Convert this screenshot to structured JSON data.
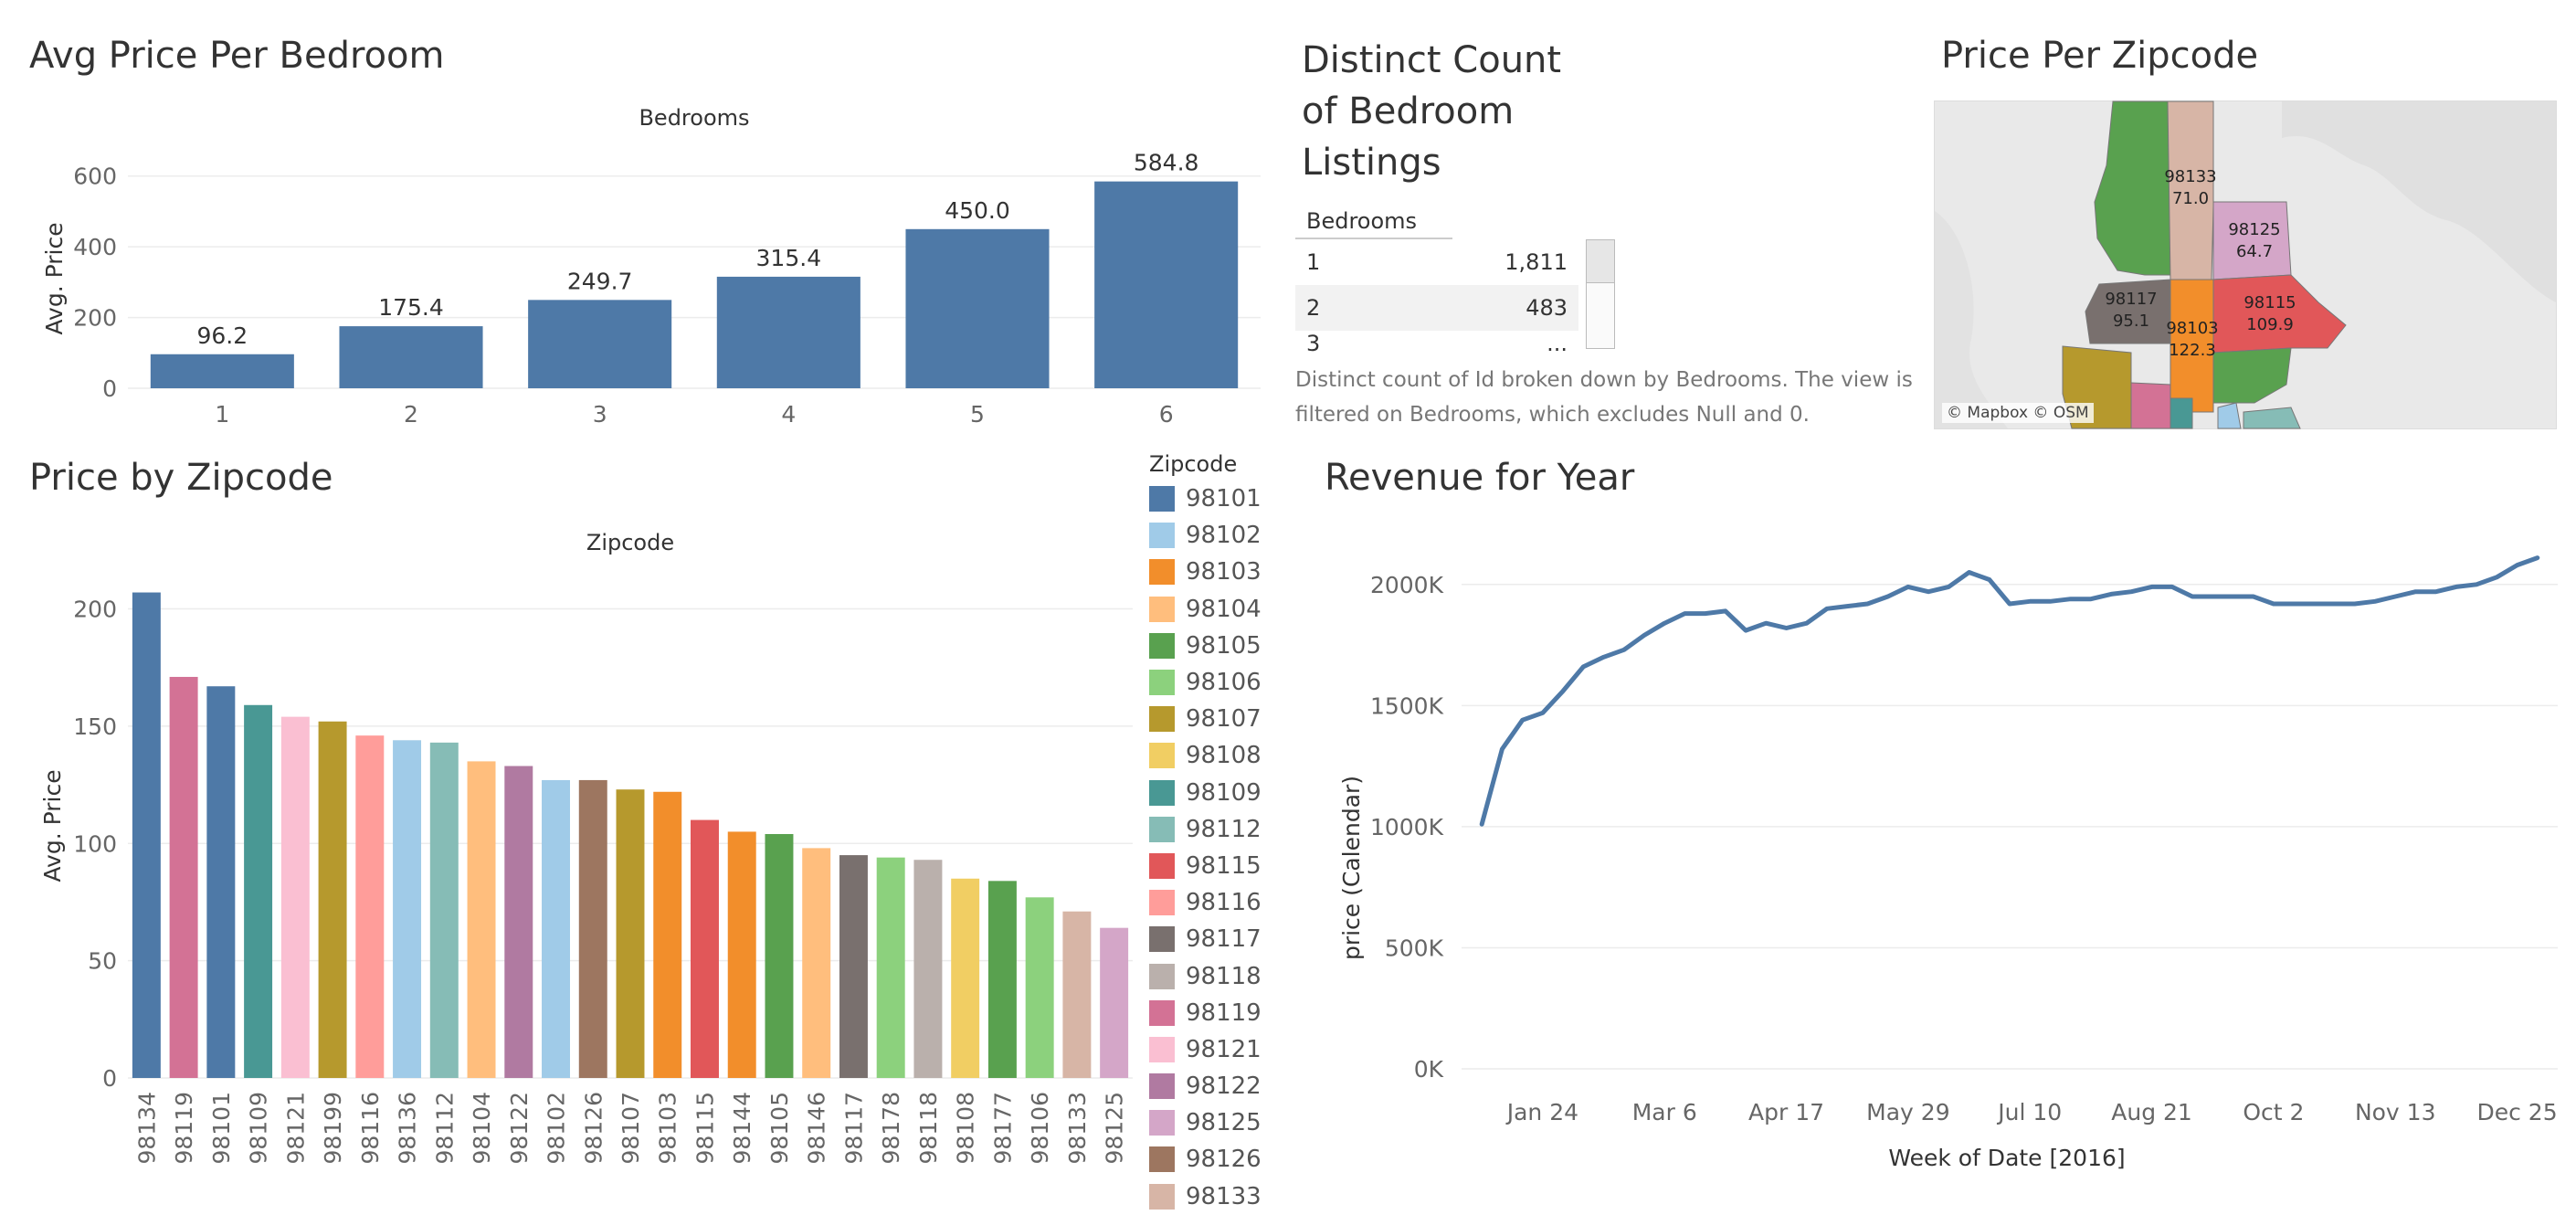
{
  "panels": {
    "bedroom_title": "Avg Price Per Bedroom",
    "zipcode_title": "Price by Zipcode",
    "distinct_title_lines": [
      "Distinct Count",
      "of Bedroom",
      "Listings"
    ],
    "map_title": "Price Per Zipcode",
    "revenue_title": "Revenue for Year"
  },
  "distinct_table": {
    "header": "Bedrooms",
    "rows": [
      {
        "label": "1",
        "value": "1,811"
      },
      {
        "label": "2",
        "value": "483"
      },
      {
        "label": "3",
        "value": "..."
      }
    ],
    "caption_lines": [
      "Distinct count of Id broken down by Bedrooms. The view is",
      "filtered on Bedrooms, which excludes Null and 0."
    ]
  },
  "map": {
    "attribution": "© Mapbox © OSM",
    "regions": [
      {
        "zip": "98133",
        "value": "71.0",
        "color": "#d7b5a6"
      },
      {
        "zip": "98125",
        "value": "64.7",
        "color": "#d4a6c8"
      },
      {
        "zip": "98117",
        "value": "95.1",
        "color": "#79706e"
      },
      {
        "zip": "98103",
        "value": "122.3",
        "color": "#f28e2b"
      },
      {
        "zip": "98115",
        "value": "109.9",
        "color": "#e15759"
      }
    ]
  },
  "legend": {
    "title": "Zipcode",
    "items": [
      {
        "label": "98101",
        "color": "#4e79a7"
      },
      {
        "label": "98102",
        "color": "#a0cbe8"
      },
      {
        "label": "98103",
        "color": "#f28e2b"
      },
      {
        "label": "98104",
        "color": "#ffbe7d"
      },
      {
        "label": "98105",
        "color": "#59a14f"
      },
      {
        "label": "98106",
        "color": "#8cd17d"
      },
      {
        "label": "98107",
        "color": "#b6992d"
      },
      {
        "label": "98108",
        "color": "#f1ce63"
      },
      {
        "label": "98109",
        "color": "#499894"
      },
      {
        "label": "98112",
        "color": "#86bcb6"
      },
      {
        "label": "98115",
        "color": "#e15759"
      },
      {
        "label": "98116",
        "color": "#ff9d9a"
      },
      {
        "label": "98117",
        "color": "#79706e"
      },
      {
        "label": "98118",
        "color": "#bab0ac"
      },
      {
        "label": "98119",
        "color": "#d37295"
      },
      {
        "label": "98121",
        "color": "#fabfd2"
      },
      {
        "label": "98122",
        "color": "#b07aa1"
      },
      {
        "label": "98125",
        "color": "#d4a6c8"
      },
      {
        "label": "98126",
        "color": "#9d7660"
      },
      {
        "label": "98133",
        "color": "#d7b5a6"
      }
    ]
  },
  "chart_data": [
    {
      "type": "bar",
      "title": "Avg Price Per Bedroom",
      "header": "Bedrooms",
      "categories": [
        "1",
        "2",
        "3",
        "4",
        "5",
        "6"
      ],
      "values": [
        96.2,
        175.4,
        249.7,
        315.4,
        450.0,
        584.8
      ],
      "data_labels": [
        "96.2",
        "175.4",
        "249.7",
        "315.4",
        "450.0",
        "584.8"
      ],
      "ylabel": "Avg. Price",
      "yticks": [
        0,
        200,
        400,
        600
      ],
      "ylim": [
        0,
        620
      ],
      "color": "#4e79a7"
    },
    {
      "type": "bar",
      "title": "Price by Zipcode",
      "header": "Zipcode",
      "categories": [
        "98134",
        "98119",
        "98101",
        "98109",
        "98121",
        "98199",
        "98116",
        "98136",
        "98112",
        "98104",
        "98122",
        "98102",
        "98126",
        "98107",
        "98103",
        "98115",
        "98144",
        "98105",
        "98146",
        "98117",
        "98178",
        "98118",
        "98108",
        "98177",
        "98106",
        "98133",
        "98125"
      ],
      "values": [
        207,
        171,
        167,
        159,
        154,
        152,
        146,
        144,
        143,
        135,
        133,
        127,
        127,
        123,
        122,
        110,
        105,
        104,
        98,
        95,
        94,
        93,
        85,
        84,
        77,
        71,
        64
      ],
      "colors": [
        "#4e79a7",
        "#d37295",
        "#4e79a7",
        "#499894",
        "#fabfd2",
        "#b6992d",
        "#ff9d9a",
        "#a0cbe8",
        "#86bcb6",
        "#ffbe7d",
        "#b07aa1",
        "#a0cbe8",
        "#9d7660",
        "#b6992d",
        "#f28e2b",
        "#e15759",
        "#f28e2b",
        "#59a14f",
        "#ffbe7d",
        "#79706e",
        "#8cd17d",
        "#bab0ac",
        "#f1ce63",
        "#59a14f",
        "#8cd17d",
        "#d7b5a6",
        "#d4a6c8"
      ],
      "ylabel": "Avg. Price",
      "yticks": [
        0,
        50,
        100,
        150,
        200
      ],
      "ylim": [
        0,
        215
      ]
    },
    {
      "type": "line",
      "title": "Revenue for Year",
      "xlabel": "Week of Date [2016]",
      "ylabel": "price (Calendar)",
      "xtick_labels": [
        "Jan 24",
        "Mar 6",
        "Apr 17",
        "May 29",
        "Jul 10",
        "Aug 21",
        "Oct 2",
        "Nov 13",
        "Dec 25"
      ],
      "xtick_weeks": [
        4,
        10,
        16,
        22,
        28,
        34,
        40,
        46,
        52
      ],
      "yticks": [
        0,
        500,
        1000,
        1500,
        2000
      ],
      "ytick_labels": [
        "0K",
        "500K",
        "1000K",
        "1500K",
        "2000K"
      ],
      "ylim": [
        0,
        2150
      ],
      "x_weeks": [
        1,
        2,
        3,
        4,
        5,
        6,
        7,
        8,
        9,
        10,
        11,
        12,
        13,
        14,
        15,
        16,
        17,
        18,
        19,
        20,
        21,
        22,
        23,
        24,
        25,
        26,
        27,
        28,
        29,
        30,
        31,
        32,
        33,
        34,
        35,
        36,
        37,
        38,
        39,
        40,
        41,
        42,
        43,
        44,
        45,
        46,
        47,
        48,
        49,
        50,
        51,
        52,
        53
      ],
      "values": [
        1010,
        1320,
        1440,
        1470,
        1560,
        1660,
        1700,
        1730,
        1790,
        1840,
        1880,
        1880,
        1890,
        1810,
        1840,
        1820,
        1840,
        1900,
        1910,
        1920,
        1950,
        1990,
        1970,
        1990,
        2050,
        2020,
        1920,
        1930,
        1930,
        1940,
        1940,
        1960,
        1970,
        1990,
        1990,
        1950,
        1950,
        1950,
        1950,
        1920,
        1920,
        1920,
        1920,
        1920,
        1930,
        1950,
        1970,
        1970,
        1990,
        2000,
        2030,
        2080,
        2110
      ],
      "color": "#4e79a7"
    }
  ]
}
